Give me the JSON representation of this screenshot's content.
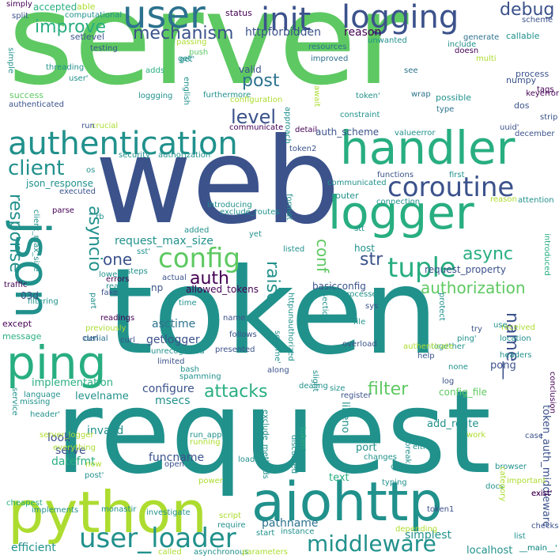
{
  "palette": {
    "dark_purple": "#440154",
    "indigo": "#3b528b",
    "blue": "#2c728e",
    "teal": "#21918c",
    "green": "#28ae80",
    "lime_green": "#5ec962",
    "yellow_green": "#addc30",
    "yellow": "#fde725"
  },
  "words": [
    "server",
    "web",
    "token",
    "request",
    "python",
    "aiohttp",
    "handler",
    "logger",
    "json",
    "ping",
    "user",
    "logging",
    "init",
    "authentication",
    "coroutine",
    "config",
    "tuple",
    "client",
    "debug",
    "improve",
    "mechanism",
    "httpforbidden",
    "reason",
    "status",
    "level",
    "post",
    "conf",
    "str",
    "response",
    "asyncio",
    "auth",
    "raise",
    "one",
    "name__",
    "authorization",
    "request_max_size",
    "allowed_tokens",
    "attacks",
    "filter",
    "user_loader",
    "middleware",
    "token_auth_middleware",
    "async",
    "request_property",
    "basicconfig",
    "host",
    "router",
    "auth_scheme",
    "json_response",
    "previously",
    "readings",
    "asctime",
    "getlogger",
    "configure",
    "msecs",
    "levelname",
    "implementation",
    "funcname",
    "pathname",
    "localhost",
    "simplest",
    "add_route",
    "config_file",
    "lineno",
    "pong",
    "datefmt",
    "serve",
    "look",
    "invalid",
    "text",
    "port",
    "instance",
    "efficient",
    "run_app",
    "exclude_routes",
    "exclude_methods",
    "header",
    "server_logger",
    "everything",
    "typing",
    "docs",
    "browser",
    "category",
    "important",
    "checks",
    "list",
    "__main__",
    "conclusion",
    "exist",
    "depending",
    "token1",
    "token2",
    "valid",
    "process",
    "possible",
    "numpy",
    "dos",
    "uuid",
    "tags",
    "keyerror",
    "strip",
    "december",
    "scheme",
    "callable",
    "generate",
    "include",
    "doesn",
    "multi",
    "unwanted",
    "resources",
    "improved",
    "see",
    "wrap",
    "type",
    "constraint",
    "valueerror",
    "detail",
    "communicate",
    "crucial",
    "run",
    "english",
    "furthermore",
    "configuration",
    "approach",
    "await",
    "get",
    "push",
    "passing",
    "testing",
    "setlevel",
    "accepted",
    "able",
    "computational",
    "split",
    "simply",
    "simple",
    "threading",
    "adds",
    "success",
    "authenticated",
    "security",
    "authorization2",
    "os",
    "executed",
    "parse",
    "client_max_size",
    "traffic",
    "filtering",
    "except",
    "message",
    "curl",
    "denial",
    "curl_",
    "language",
    "service",
    "missing",
    "now",
    "cheapest",
    "implements",
    "monastir",
    "called",
    "asynchronous",
    "parameters",
    "start",
    "loads",
    "script",
    "require",
    "power",
    "investigate",
    "open",
    "running",
    "discussed",
    "changes",
    "break",
    "either",
    "data",
    "work",
    "case",
    "overload",
    "together",
    "received",
    "location",
    "headers",
    "file",
    "log",
    "none",
    "dealing",
    "size",
    "register",
    "sys",
    "section",
    "protect",
    "processed",
    "try",
    "use",
    "help",
    "authenticate",
    "slight",
    "follows",
    "name",
    "presented",
    "unrecognized",
    "limited",
    "bash",
    "spamming",
    "along",
    "fake",
    "actual",
    "time",
    "lower",
    "errors",
    "steps",
    "np",
    "read",
    "rb",
    "yet",
    "listed",
    "introducing",
    "added",
    "ping_",
    "sst",
    "connection",
    "functions",
    "first",
    "communicated",
    "reason2",
    "attention",
    "introduced",
    "format",
    "httpunauthorized",
    "token_q",
    "ping_q",
    "sst_q",
    "stt",
    "03d",
    "part",
    "the",
    "loggging",
    "user_q",
    "get_q",
    "token_q2",
    "post_q",
    "header_q",
    "scheme_q",
    "token_q3",
    "exist_q",
    "main_q"
  ],
  "labels": {
    "server": "server",
    "web": "web",
    "token": "token",
    "request": "request",
    "python": "python",
    "aiohttp": "aiohttp",
    "handler": "handler",
    "logger": "logger",
    "json": "json",
    "ping": "ping",
    "user": "user",
    "logging": "logging",
    "init": "init",
    "authentication": "authentication",
    "coroutine": "coroutine",
    "config": "config",
    "tuple": "tuple",
    "client": "client",
    "debug": "debug",
    "improve": "improve",
    "mechanism": "mechanism",
    "httpforbidden": "httpforbidden",
    "reason": "reason",
    "status": "status",
    "level": "level",
    "post": "post",
    "conf": "conf",
    "str": "str",
    "response": "response",
    "asyncio": "asyncio",
    "auth": "auth",
    "raise": "raise",
    "one": "one",
    "name__": "name__",
    "authorization": "authorization",
    "request_max_size": "request_max_size",
    "allowed_tokens": "allowed_tokens",
    "attacks": "attacks",
    "filter": "filter",
    "user_loader": "user_loader",
    "middleware": "middleware",
    "token_auth_middleware": "token_auth_middleware",
    "async": "async",
    "request_property": "request_property",
    "basicconfig": "basicconfig",
    "host": "host",
    "router": "router",
    "auth_scheme": "auth_scheme",
    "json_response": "json_response",
    "previously": "previously",
    "readings": "readings",
    "asctime": "asctime",
    "getlogger": "getlogger",
    "configure": "configure",
    "msecs": "msecs",
    "levelname": "levelname",
    "implementation": "implementation",
    "funcname": "funcname",
    "pathname": "pathname",
    "localhost": "localhost",
    "simplest": "simplest",
    "add_route": "add_route",
    "config_file": "config_file",
    "lineno": "lineno",
    "pong": "pong",
    "datefmt": "datefmt",
    "serve": "serve",
    "look": "look",
    "invalid": "invalid",
    "text": "text",
    "port": "port",
    "instance": "instance",
    "efficient": "efficient",
    "run_app": "run_app",
    "exclude_routes": "exclude_routes",
    "exclude_methods": "exclude_methods",
    "header": "header'",
    "server_logger": "server_logger",
    "everything": "everything",
    "typing": "typing",
    "docs": "docs",
    "browser": "browser",
    "category": "category",
    "important": "important",
    "checks": "checks",
    "list": "list",
    "__main__": "__main__'",
    "conclusion": "conclusion",
    "exist": "exist'",
    "depending": "depending",
    "token1": "token1",
    "token2": "token2",
    "valid": "valid",
    "process": "process",
    "possible": "possible",
    "numpy": "numpy",
    "dos": "dos",
    "uuid": "uuid'",
    "tags": "tags",
    "keyerror": "keyerror",
    "strip": "strip",
    "december": "december",
    "scheme": "scheme",
    "callable": "callable",
    "generate": "generate",
    "include": "include",
    "doesn": "doesn",
    "multi": "multi",
    "unwanted": "unwanted",
    "resources": "resources",
    "improved": "improved",
    "see": "see",
    "wrap": "wrap",
    "type": "type",
    "constraint": "constraint",
    "valueerror": "valueerror",
    "detail": "detail",
    "communicate": "communicate",
    "crucial": "crucial",
    "run": "run",
    "english": "english",
    "furthermore": "furthermore",
    "configuration": "configuration",
    "approach": "approach",
    "await": "await",
    "get": "get'",
    "push": "push",
    "passing": "passing",
    "testing": "testing",
    "setlevel": "setlevel",
    "accepted": "accepted",
    "able": "able",
    "computational": "computational",
    "split": "split",
    "simply": "simply",
    "simple": "simple",
    "threading": "threading",
    "adds": "adds",
    "success": "success",
    "authenticated": "authenticated",
    "security": "security",
    "authorization2": "authorization'",
    "os": "os",
    "executed": "executed",
    "parse": "parse",
    "client_max_size": "client_max_size",
    "traffic": "traffic",
    "filtering": "filtering",
    "except": "except",
    "message": "message",
    "curl": "curl",
    "denial": "denial",
    "curl_": "curl_",
    "language": "language",
    "service": "service",
    "missing": "missing",
    "now": "now",
    "cheapest": "cheapest",
    "implements": "implements",
    "monastir": "monastir",
    "called": "called",
    "asynchronous": "asynchronous",
    "parameters": "parameters",
    "start": "start",
    "loads": "loads",
    "script": "script",
    "require": "require",
    "power": "power",
    "investigate": "investigate",
    "open": "open",
    "running": "running",
    "discussed": "discussed",
    "changes": "changes",
    "break": "break",
    "either": "either",
    "data": "data",
    "work": "work",
    "case": "case",
    "overload": "overload",
    "together": "together",
    "received": "received",
    "location": "location",
    "headers": "headers",
    "file": "file",
    "log": "log",
    "none": "none",
    "dealing": "dealing",
    "size": "size",
    "register": "register",
    "sys": "sys",
    "section": "section",
    "protect": "protect",
    "processed": "processed",
    "try": "try",
    "use": "use",
    "help": "help",
    "authenticate": "authenticate",
    "slight": "slight",
    "follows": "follows",
    "name": "name",
    "presented": "presented",
    "unrecognized": "unrecognized",
    "limited": "limited",
    "bash": "bash",
    "spamming": "spamming",
    "along": "along",
    "fake": "fake",
    "actual": "actual",
    "time": "time",
    "lower": "lower",
    "errors": "errors",
    "steps": "steps",
    "np": "np",
    "read": "read",
    "rb": "rb",
    "yet": "yet",
    "listed": "listed",
    "introducing": "introducing",
    "added": "added",
    "ping_": "ping'",
    "sst": "sst'",
    "connection": "connection",
    "functions": "functions",
    "first": "first",
    "communicated": "communicated",
    "reason2": "reason",
    "attention": "attention",
    "introduced": "introduced",
    "format": "format",
    "httpunauthorized": "httpunauthorized",
    "token_q": "token'",
    "ping_q": "ping'",
    "sst_q": "stt",
    "stt": "stt",
    "03d": "03d",
    "part": "part",
    "the": "the",
    "loggging": "loggging",
    "user_q": "user'",
    "get_q": "get'",
    "token_q2": "token'",
    "post_q": "post'",
    "header_q": "header'",
    "scheme_q": "scheme'",
    "token_q3": "token'",
    "exist_q": "exist'",
    "main_q": "__main__'"
  }
}
